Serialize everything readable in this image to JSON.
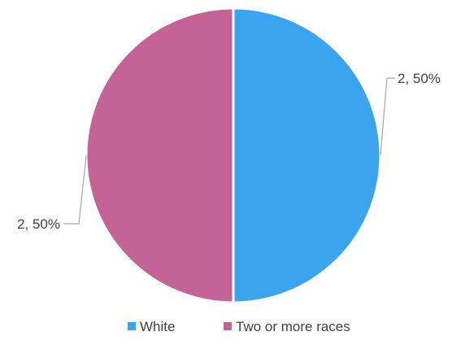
{
  "chart_data": {
    "type": "pie",
    "title": "",
    "categories": [
      "White",
      "Two or more races"
    ],
    "values": [
      2,
      2
    ],
    "percentages": [
      "50%",
      "50%"
    ],
    "data_labels": [
      "2, 50%",
      "2, 50%"
    ],
    "colors": [
      "#3AA4EE",
      "#C46496"
    ],
    "legend": {
      "placement": "bottom",
      "entries": [
        "White",
        "Two or more races"
      ]
    },
    "start_angle": "12 o'clock",
    "direction": "clockwise"
  }
}
